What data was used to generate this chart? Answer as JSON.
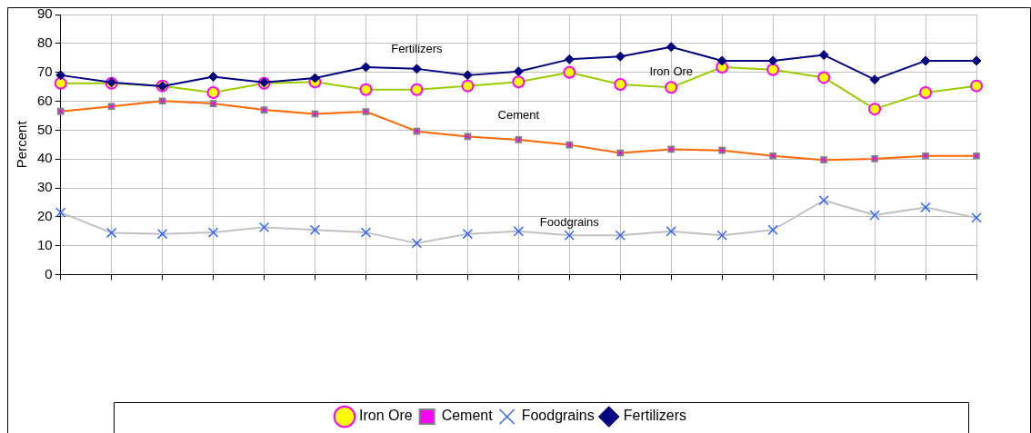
{
  "chart_data": {
    "type": "line",
    "ylabel": "Percent",
    "categories": [
      null,
      null,
      null,
      null,
      null,
      null,
      null,
      null,
      null,
      null,
      null,
      null,
      null,
      null,
      null,
      null,
      null,
      null,
      null
    ],
    "series": [
      {
        "name": "Iron Ore",
        "color": "#99cc00",
        "marker": "circle",
        "values": [
          66.2,
          66.2,
          65.3,
          63,
          66.2,
          66.7,
          64,
          64,
          65.3,
          66.7,
          70,
          65.8,
          64.8,
          71.8,
          70.9,
          68.2,
          57.3,
          63,
          65.3
        ]
      },
      {
        "name": "Cement",
        "color": "#ff6600",
        "marker": "square",
        "values": [
          56.5,
          58.2,
          60.1,
          59.2,
          57,
          55.6,
          56.4,
          49.6,
          47.8,
          46.7,
          44.9,
          42.1,
          43.4,
          43,
          41.1,
          39.7,
          40.1,
          41.1,
          41.1
        ]
      },
      {
        "name": "Foodgrains",
        "color": "#c0c0c0",
        "marker": "cross",
        "values": [
          21.5,
          14.5,
          14.1,
          14.6,
          16.4,
          15.5,
          14.6,
          10.9,
          14.1,
          15,
          13.6,
          13.6,
          15,
          13.6,
          15.5,
          25.7,
          20.6,
          23.3,
          19.7
        ]
      },
      {
        "name": "Fertilizers",
        "color": "#000080",
        "marker": "diamond",
        "values": [
          69,
          66.5,
          65.2,
          68.5,
          66.5,
          68,
          71.8,
          71.2,
          69,
          70.3,
          74.5,
          75.5,
          78.8,
          74,
          74,
          76,
          67.5,
          74,
          74
        ]
      }
    ],
    "annotations": [
      "Fertilizers",
      "Iron Ore",
      "Cement",
      "Foodgrains"
    ],
    "ylim": [
      0,
      90
    ],
    "yticks": [
      0,
      10,
      20,
      30,
      40,
      50,
      60,
      70,
      80,
      90
    ],
    "grid": true,
    "legend": "bottom",
    "line_style": "solid"
  }
}
